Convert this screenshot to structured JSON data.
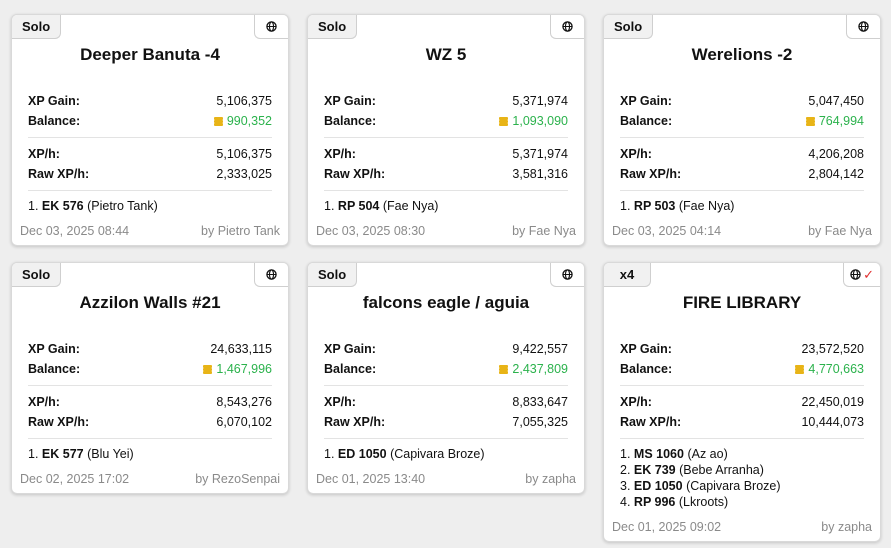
{
  "colors": {
    "balance": "#2bb24c",
    "coin": "#e8b417",
    "checkmark": "#e03030"
  },
  "labels": {
    "xp_gain": "XP Gain:",
    "balance": "Balance:",
    "xp_h": "XP/h:",
    "raw_xp_h": "Raw XP/h:"
  },
  "cards": [
    {
      "badge": "Solo",
      "title": "Deeper Banuta -4",
      "xp_gain": "5,106,375",
      "balance": "990,352",
      "xp_h": "5,106,375",
      "raw_xp_h": "2,333,025",
      "participants": [
        {
          "num": "1.",
          "voc_level": "EK 576",
          "char": "(Pietro Tank)"
        }
      ],
      "date": "Dec 03, 2025 08:44",
      "author": "by Pietro Tank"
    },
    {
      "badge": "Solo",
      "title": "WZ 5",
      "xp_gain": "5,371,974",
      "balance": "1,093,090",
      "xp_h": "5,371,974",
      "raw_xp_h": "3,581,316",
      "participants": [
        {
          "num": "1.",
          "voc_level": "RP 504",
          "char": "(Fae Nya)"
        }
      ],
      "date": "Dec 03, 2025 08:30",
      "author": "by Fae Nya"
    },
    {
      "badge": "Solo",
      "title": "Werelions -2",
      "xp_gain": "5,047,450",
      "balance": "764,994",
      "xp_h": "4,206,208",
      "raw_xp_h": "2,804,142",
      "participants": [
        {
          "num": "1.",
          "voc_level": "RP 503",
          "char": "(Fae Nya)"
        }
      ],
      "date": "Dec 03, 2025 04:14",
      "author": "by Fae Nya"
    },
    {
      "badge": "Solo",
      "title": "Azzilon Walls #21",
      "xp_gain": "24,633,115",
      "balance": "1,467,996",
      "xp_h": "8,543,276",
      "raw_xp_h": "6,070,102",
      "participants": [
        {
          "num": "1.",
          "voc_level": "EK 577",
          "char": "(Blu Yei)"
        }
      ],
      "date": "Dec 02, 2025 17:02",
      "author": "by RezoSenpai"
    },
    {
      "badge": "Solo",
      "title": "falcons eagle / aguia",
      "xp_gain": "9,422,557",
      "balance": "2,437,809",
      "xp_h": "8,833,647",
      "raw_xp_h": "7,055,325",
      "participants": [
        {
          "num": "1.",
          "voc_level": "ED 1050",
          "char": "(Capivara Broze)"
        }
      ],
      "date": "Dec 01, 2025 13:40",
      "author": "by zapha"
    },
    {
      "badge": "x4",
      "title": "FIRE LIBRARY",
      "xp_gain": "23,572,520",
      "balance": "4,770,663",
      "xp_h": "22,450,019",
      "raw_xp_h": "10,444,073",
      "participants": [
        {
          "num": "1.",
          "voc_level": "MS 1060",
          "char": "(Az ao)"
        },
        {
          "num": "2.",
          "voc_level": "EK 739",
          "char": "(Bebe Arranha)"
        },
        {
          "num": "3.",
          "voc_level": "ED 1050",
          "char": "(Capivara Broze)"
        },
        {
          "num": "4.",
          "voc_level": "RP 996",
          "char": "(Lkroots)"
        }
      ],
      "date": "Dec 01, 2025 09:02",
      "author": "by zapha"
    }
  ]
}
